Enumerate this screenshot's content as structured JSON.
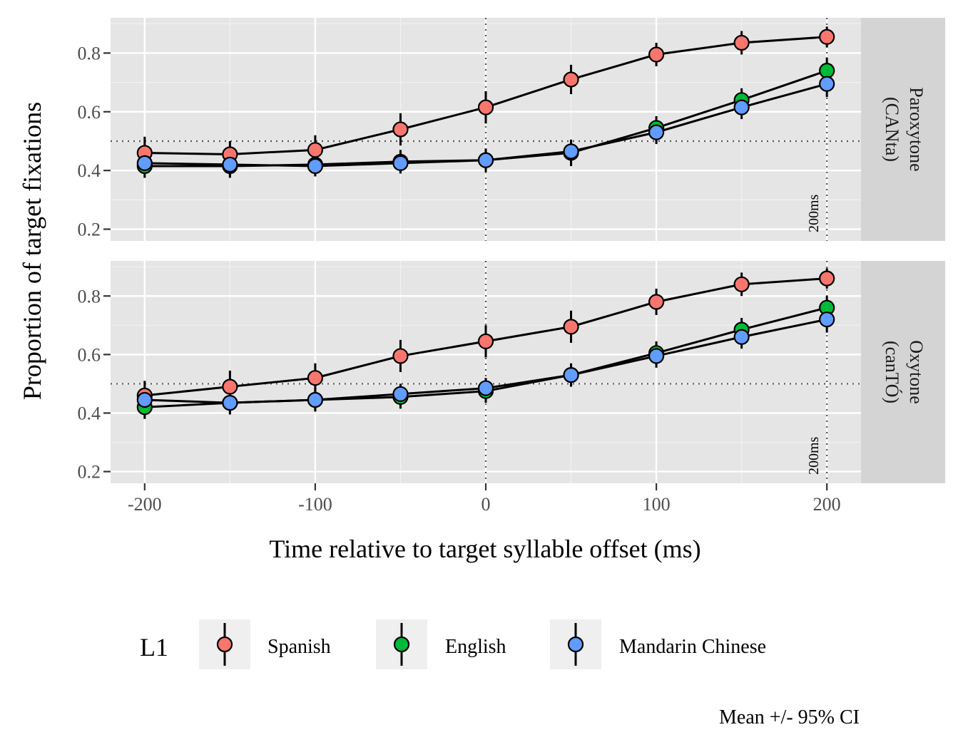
{
  "chart_data": {
    "type": "line",
    "title": "",
    "xlabel": "Time relative to target syllable offset (ms)",
    "ylabel": "Proportion of target fixations",
    "caption": "Mean +/- 95% CI",
    "xlim": [
      -220,
      220
    ],
    "ylim": [
      0.16,
      0.92
    ],
    "x_ticks": [
      -200,
      -100,
      0,
      100,
      200
    ],
    "x_tick_labels": [
      "-200",
      "-100",
      "0",
      "100",
      "200"
    ],
    "y_ticks": [
      0.2,
      0.4,
      0.6,
      0.8
    ],
    "y_tick_labels": [
      "0.2",
      "0.4",
      "0.6",
      "0.8"
    ],
    "grid": true,
    "x": [
      -200,
      -150,
      -100,
      -50,
      0,
      50,
      100,
      150,
      200
    ],
    "reference_lines": {
      "horizontal_y": 0.5,
      "vertical_x": [
        0,
        200
      ]
    },
    "legend": {
      "title": "L1",
      "position": "bottom"
    },
    "series_styles": [
      {
        "name": "Spanish",
        "color": "#F8766D"
      },
      {
        "name": "English",
        "color": "#00BA38"
      },
      {
        "name": "Mandarin Chinese",
        "color": "#619CFF"
      }
    ],
    "panels": [
      {
        "strip_label": [
          "Paroxytone",
          "(CANta)"
        ],
        "annotation": "200ms",
        "series": [
          {
            "name": "Spanish",
            "values": [
              0.46,
              0.455,
              0.47,
              0.54,
              0.615,
              0.71,
              0.795,
              0.835,
              0.855
            ],
            "ci": [
              0.055,
              0.045,
              0.05,
              0.055,
              0.055,
              0.05,
              0.04,
              0.04,
              0.035
            ]
          },
          {
            "name": "English",
            "values": [
              0.415,
              0.415,
              0.42,
              0.43,
              0.435,
              0.46,
              0.545,
              0.64,
              0.74
            ],
            "ci": [
              0.04,
              0.04,
              0.04,
              0.04,
              0.04,
              0.045,
              0.04,
              0.04,
              0.045
            ]
          },
          {
            "name": "Mandarin Chinese",
            "values": [
              0.425,
              0.42,
              0.415,
              0.425,
              0.435,
              0.465,
              0.53,
              0.615,
              0.695
            ],
            "ci": [
              0.035,
              0.035,
              0.035,
              0.035,
              0.035,
              0.04,
              0.04,
              0.04,
              0.045
            ]
          }
        ]
      },
      {
        "strip_label": [
          "Oxytone",
          "(canTÓ)"
        ],
        "annotation": "200ms",
        "series": [
          {
            "name": "Spanish",
            "values": [
              0.46,
              0.49,
              0.52,
              0.595,
              0.645,
              0.695,
              0.78,
              0.84,
              0.86
            ],
            "ci": [
              0.05,
              0.055,
              0.05,
              0.055,
              0.055,
              0.055,
              0.045,
              0.04,
              0.035
            ]
          },
          {
            "name": "English",
            "values": [
              0.42,
              0.435,
              0.445,
              0.455,
              0.475,
              0.53,
              0.605,
              0.685,
              0.76
            ],
            "ci": [
              0.04,
              0.04,
              0.04,
              0.04,
              0.04,
              0.04,
              0.04,
              0.04,
              0.04
            ]
          },
          {
            "name": "Mandarin Chinese",
            "values": [
              0.445,
              0.435,
              0.445,
              0.465,
              0.485,
              0.53,
              0.595,
              0.66,
              0.72
            ],
            "ci": [
              0.035,
              0.035,
              0.035,
              0.035,
              0.035,
              0.035,
              0.04,
              0.04,
              0.045
            ]
          }
        ]
      }
    ]
  }
}
